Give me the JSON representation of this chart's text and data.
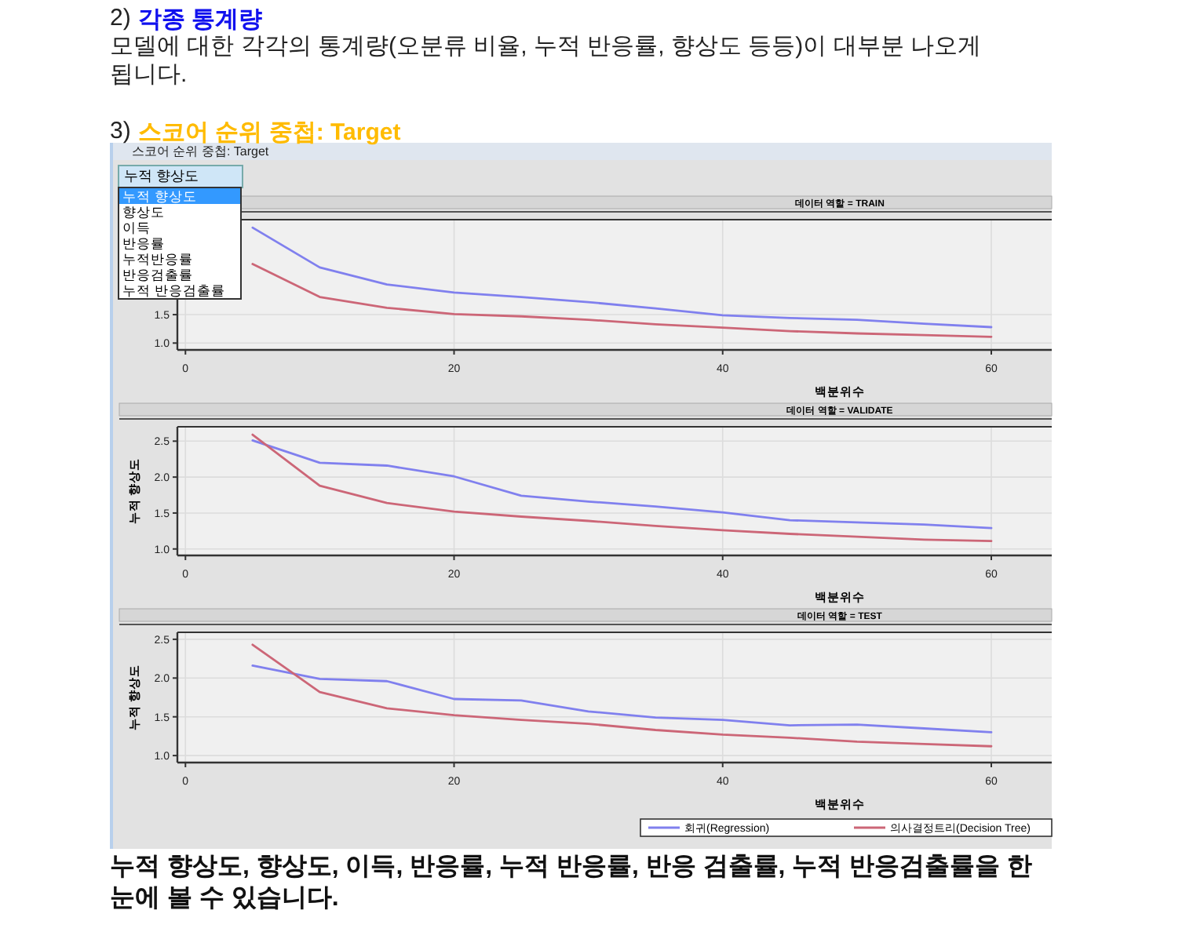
{
  "chart_data": [
    {
      "type": "other",
      "annotations": [
        "2)",
        "각종 통계량",
        " 모델에 대한 각각의 통계량(오분류 비율, 누적 반응률, 향상도 등등)이 대부분 나오게 됩니다.",
        "3)",
        "스코어 순위 중첩: Target",
        "스코어 순위 중첩: Target",
        "누적 향상도",
        "누적 향상도",
        "향상도",
        "이득",
        "반응률",
        "누적반응률",
        "반응검출률",
        "누적 반응검출률"
      ]
    },
    {
      "type": "line",
      "title": "데이터 역할 = TRAIN",
      "xlabel": "백분위수",
      "x": [
        5,
        10,
        15,
        20,
        25,
        30,
        35,
        40,
        45,
        50,
        55,
        60
      ],
      "xlim": [
        -0.6,
        64.5
      ],
      "xticks": [
        0,
        20,
        40,
        60
      ],
      "ylim": [
        0.88,
        3.17
      ],
      "yticks": [
        {
          "value": 1,
          "label": "1.0"
        },
        {
          "value": 1.5,
          "label": "1.5"
        }
      ],
      "grid": true,
      "series": [
        {
          "color": "#8080ee",
          "values": [
            3.03,
            2.33,
            2.03,
            1.89,
            1.81,
            1.72,
            1.61,
            1.49,
            1.44,
            1.41,
            1.34,
            1.28
          ]
        },
        {
          "color": "#cc6677",
          "values": [
            2.39,
            1.81,
            1.62,
            1.51,
            1.47,
            1.41,
            1.33,
            1.27,
            1.21,
            1.17,
            1.14,
            1.11
          ]
        }
      ]
    },
    {
      "type": "line",
      "title": "데이터 역할 = VALIDATE",
      "xlabel": "백분위수",
      "ylabel": "누적 향상도",
      "x": [
        5,
        10,
        15,
        20,
        25,
        30,
        35,
        40,
        45,
        50,
        55,
        60
      ],
      "xlim": [
        -0.6,
        64.5
      ],
      "xticks": [
        0,
        20,
        40,
        60
      ],
      "ylim": [
        0.91,
        2.7
      ],
      "yticks": [
        {
          "value": 1,
          "label": "1.0"
        },
        {
          "value": 1.5,
          "label": "1.5"
        },
        {
          "value": 2,
          "label": "2.0"
        },
        {
          "value": 2.5,
          "label": "2.5"
        }
      ],
      "grid": true,
      "series": [
        {
          "color": "#8080ee",
          "values": [
            2.51,
            2.2,
            2.16,
            2.01,
            1.74,
            1.66,
            1.59,
            1.51,
            1.4,
            1.37,
            1.34,
            1.29
          ]
        },
        {
          "color": "#cc6677",
          "values": [
            2.59,
            1.88,
            1.64,
            1.52,
            1.45,
            1.39,
            1.32,
            1.26,
            1.21,
            1.17,
            1.13,
            1.11
          ]
        }
      ]
    },
    {
      "type": "line",
      "title": "데이터 역할 = TEST",
      "xlabel": "백분위수",
      "ylabel": "누적 향상도",
      "x": [
        5,
        10,
        15,
        20,
        25,
        30,
        35,
        40,
        45,
        50,
        55,
        60
      ],
      "xlim": [
        -0.6,
        64.5
      ],
      "xticks": [
        0,
        20,
        40,
        60
      ],
      "ylim": [
        0.91,
        2.59
      ],
      "yticks": [
        {
          "value": 1,
          "label": "1.0"
        },
        {
          "value": 1.5,
          "label": "1.5"
        },
        {
          "value": 2,
          "label": "2.0"
        },
        {
          "value": 2.5,
          "label": "2.5"
        }
      ],
      "grid": true,
      "legend": "bottom right",
      "series": [
        {
          "name": "회귀(Regression)",
          "color": "#8080ee",
          "values": [
            2.16,
            1.99,
            1.96,
            1.73,
            1.71,
            1.57,
            1.49,
            1.46,
            1.39,
            1.4,
            1.35,
            1.3
          ]
        },
        {
          "name": "의사결정트리(Decision Tree)",
          "color": "#cc6677",
          "values": [
            2.43,
            1.82,
            1.61,
            1.52,
            1.46,
            1.41,
            1.33,
            1.27,
            1.23,
            1.18,
            1.15,
            1.12
          ]
        }
      ]
    },
    {
      "type": "other",
      "annotations": [
        " 누적 향상도, 향상도, 이득, 반응률, 누적 반응률, 반응 검출률, 누적 반응검출률을 한 눈에 볼 수 있습니다."
      ]
    }
  ]
}
